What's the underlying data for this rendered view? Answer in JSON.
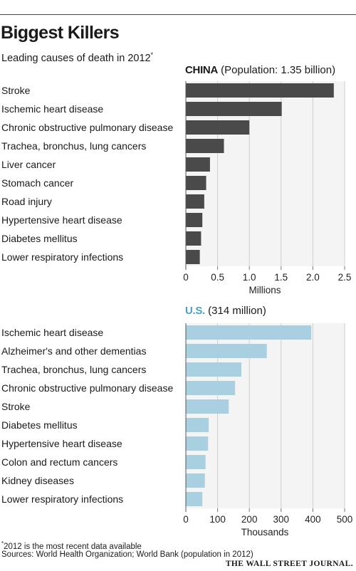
{
  "title": "Biggest Killers",
  "subtitle": "Leading causes of death in 2012",
  "subtitle_marker": "*",
  "footnote_marker": "*",
  "footnote": "2012 is the most recent data available",
  "sources": "Sources: World Health Organization; World Bank (population in 2012)",
  "brand": "THE WALL STREET JOURNAL.",
  "china_panel": {
    "country": "CHINA",
    "note": "(Population: 1.35 billion)"
  },
  "us_panel": {
    "country": "U.S.",
    "note": "(314 million)"
  },
  "chart_data": [
    {
      "type": "bar",
      "orientation": "horizontal",
      "title": "CHINA (Population: 1.35 billion)",
      "xlabel": "Millions",
      "xlim": [
        0,
        2.5
      ],
      "ticks": [
        "0",
        "0.5",
        "1.0",
        "1.5",
        "2.0",
        "2.5"
      ],
      "tick_values": [
        0,
        0.5,
        1.0,
        1.5,
        2.0,
        2.5
      ],
      "color": "#4a4a4a",
      "categories": [
        "Stroke",
        "Ischemic heart disease",
        "Chronic obstructive pulmonary disease",
        "Trachea, bronchus, lung cancers",
        "Liver cancer",
        "Stomach cancer",
        "Road injury",
        "Hypertensive heart disease",
        "Diabetes mellitus",
        "Lower respiratory infections"
      ],
      "values": [
        2.33,
        1.51,
        1.0,
        0.6,
        0.38,
        0.32,
        0.29,
        0.26,
        0.24,
        0.22
      ],
      "grid": true
    },
    {
      "type": "bar",
      "orientation": "horizontal",
      "title": "U.S. (314 million)",
      "xlabel": "Thousands",
      "xlim": [
        0,
        500
      ],
      "ticks": [
        "0",
        "100",
        "200",
        "300",
        "400",
        "500"
      ],
      "tick_values": [
        0,
        100,
        200,
        300,
        400,
        500
      ],
      "color": "#a9d0e0",
      "categories": [
        "Ischemic heart disease",
        "Alzheimer's and other dementias",
        "Trachea, bronchus, lung cancers",
        "Chronic obstructive pulmonary disease",
        "Stroke",
        "Diabetes mellitus",
        "Hypertensive heart disease",
        "Colon and rectum cancers",
        "Kidney diseases",
        "Lower respiratory infections"
      ],
      "values": [
        395,
        255,
        175,
        155,
        135,
        72,
        70,
        62,
        60,
        52
      ],
      "grid": true
    }
  ]
}
